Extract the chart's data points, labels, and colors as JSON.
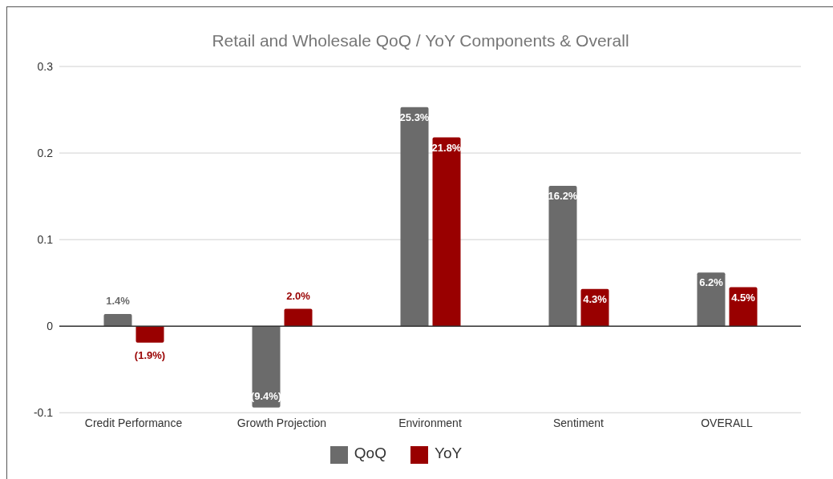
{
  "chart_data": {
    "type": "bar",
    "title": "Retail and Wholesale QoQ / YoY Components & Overall",
    "categories": [
      "Credit Performance",
      "Growth Projection",
      "Environment",
      "Sentiment",
      "OVERALL"
    ],
    "series": [
      {
        "name": "QoQ",
        "color": "#6b6b6b",
        "values": [
          0.014,
          -0.094,
          0.253,
          0.162,
          0.062
        ],
        "value_labels": [
          "1.4%",
          "(9.4%)",
          "25.3%",
          "16.2%",
          "6.2%"
        ]
      },
      {
        "name": "YoY",
        "color": "#990000",
        "values": [
          -0.019,
          0.02,
          0.218,
          0.043,
          0.045
        ],
        "value_labels": [
          "(1.9%)",
          "2.0%",
          "21.8%",
          "4.3%",
          "4.5%"
        ]
      }
    ],
    "ylim": [
      -0.1,
      0.3
    ],
    "yticks": [
      -0.1,
      0,
      0.1,
      0.2,
      0.3
    ],
    "grid": "y",
    "legend": "bottom"
  }
}
